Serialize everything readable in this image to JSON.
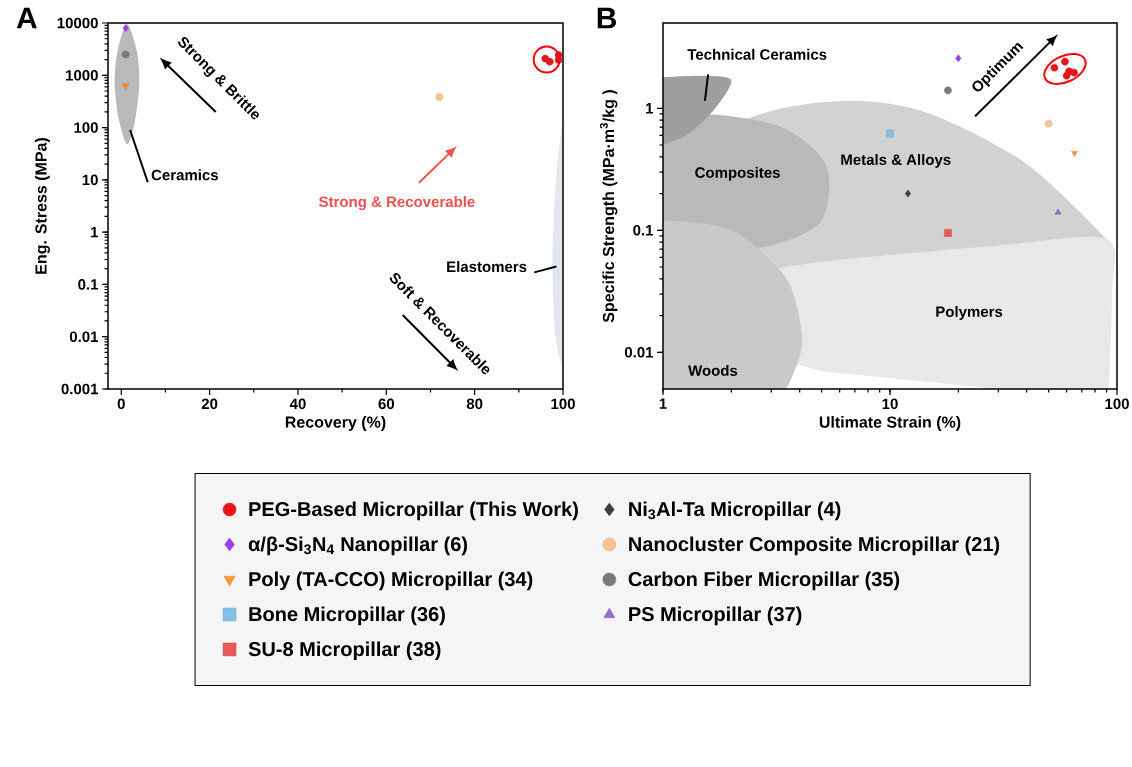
{
  "chart_data": [
    {
      "type": "scatter",
      "title": "A",
      "xlabel": "Recovery (%)",
      "ylabel": "Eng. Stress (MPa)",
      "log": "y",
      "xlim": [
        -3,
        100
      ],
      "ylim": [
        0.001,
        10000
      ],
      "xticks": [
        0,
        20,
        40,
        60,
        80,
        100
      ],
      "yticks": [
        0.001,
        0.01,
        0.1,
        1,
        10,
        100,
        1000,
        10000
      ],
      "series": [
        {
          "color": "#9d3cf0",
          "marker": "diamond",
          "x": [
            1
          ],
          "values": [
            8000
          ]
        },
        {
          "color": "#7a7a7a",
          "marker": "circle",
          "x": [
            1
          ],
          "values": [
            2500
          ]
        },
        {
          "color": "#ff8c1a",
          "marker": "triangle down",
          "x": [
            1
          ],
          "values": [
            630
          ]
        },
        {
          "color": "#f9c490",
          "marker": "circle",
          "x": [
            72
          ],
          "values": [
            384
          ]
        },
        {
          "color": "#e8141c",
          "marker": "circle",
          "x": [
            96,
            97,
            99,
            99
          ],
          "values": [
            2080,
            1820,
            2440,
            1950
          ]
        }
      ],
      "annotations": [
        "Strong & Brittle",
        "Ceramics",
        "Strong & Recoverable",
        "Elastomers",
        "Soft & Recoverable"
      ]
    },
    {
      "type": "scatter",
      "title": "B",
      "xlabel": "Ultimate Strain (%)",
      "ylabel": "Specific Strength (MPa·m$^{3}$/kg )",
      "log": "xy",
      "xlim": [
        1,
        100
      ],
      "ylim": [
        0.005,
        5
      ],
      "xticks": [
        1,
        10,
        100
      ],
      "yticks": [
        0.01,
        0.1,
        1
      ],
      "legend": "bottom",
      "series": [
        {
          "name": "PEG-Based Micropillar (This Work)",
          "color": "#e8141c",
          "marker": "circle",
          "x": [
            53,
            59,
            61.5,
            64.7,
            60
          ],
          "values": [
            2.15,
            2.41,
            2.01,
            1.96,
            1.85
          ]
        },
        {
          "name": "Ni$_{3}$Al-Ta Micropillar (4)",
          "color": "#3c3c3c",
          "marker": "diamond",
          "x": [
            12
          ],
          "values": [
            0.2
          ]
        },
        {
          "name": "α/β-Si$_{3}$N$_{4}$ Nanopillar (6)",
          "color": "#9d3cf0",
          "marker": "diamond",
          "x": [
            20
          ],
          "values": [
            2.57
          ]
        },
        {
          "name": "Nanocluster Composite Micropillar (21)",
          "color": "#f9c490",
          "marker": "circle",
          "x": [
            50
          ],
          "values": [
            0.75
          ]
        },
        {
          "name": "Poly (TA-CCO) Micropillar (34)",
          "color": "#ff9933",
          "marker": "triangle down",
          "x": [
            65
          ],
          "values": [
            0.43
          ]
        },
        {
          "name": "Carbon Fiber Micropillar (35)",
          "color": "#7a7a7a",
          "marker": "circle",
          "x": [
            18
          ],
          "values": [
            1.4
          ]
        },
        {
          "name": "Bone Micropillar (36)",
          "color": "#86c0ea",
          "marker": "square",
          "x": [
            10
          ],
          "values": [
            0.62
          ]
        },
        {
          "name": "PS Micropillar (37)",
          "color": "#9a6bd0",
          "marker": "triangle",
          "x": [
            55
          ],
          "values": [
            0.14
          ]
        },
        {
          "name": "SU-8 Micropillar (38)",
          "color": "#e85a5a",
          "marker": "square",
          "x": [
            18
          ],
          "values": [
            0.095
          ]
        }
      ],
      "annotations": [
        "Technical Ceramics",
        "Composites",
        "Metals & Alloys",
        "Polymers",
        "Woods",
        "Optimum"
      ]
    }
  ]
}
